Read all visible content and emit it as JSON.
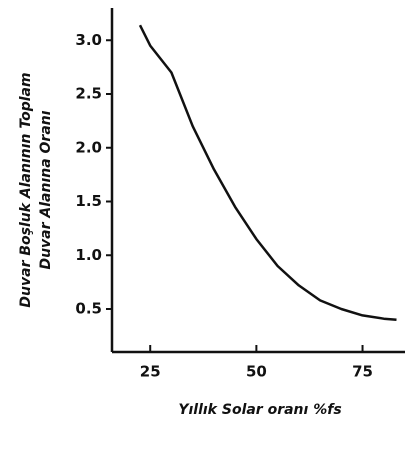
{
  "chart_data": {
    "type": "line",
    "x_label": "Yıllık Solar oranı %fs",
    "y_label": [
      "Duvar Boşluk Alanının Toplam",
      "Duvar Alanına Oranı"
    ],
    "x": [
      22.6,
      25,
      30,
      35,
      40,
      45,
      50,
      55,
      60,
      65,
      70,
      75,
      80,
      83
    ],
    "series": [
      {
        "color": "#111111",
        "values": [
          3.14,
          2.95,
          2.7,
          2.2,
          1.8,
          1.45,
          1.15,
          0.9,
          0.72,
          0.58,
          0.5,
          0.44,
          0.41,
          0.4
        ]
      }
    ],
    "xlim": [
      16,
      85
    ],
    "xticks": [
      25,
      50,
      75
    ],
    "ylim": [
      0.1,
      3.3
    ],
    "yticks": [
      0.5,
      {
        "value": 1,
        "label": "1.0"
      },
      1.5,
      {
        "value": 2,
        "label": "2.0"
      },
      2.5,
      {
        "value": 3,
        "label": "3.0"
      }
    ]
  }
}
